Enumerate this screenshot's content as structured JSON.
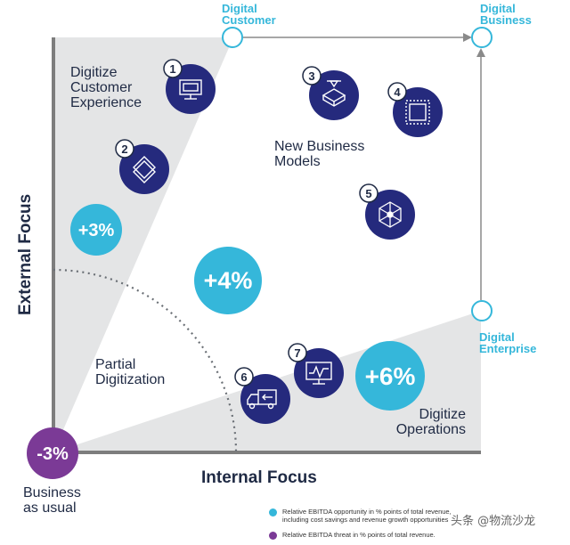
{
  "corners": {
    "digital_customer": [
      "Digital",
      "Customer"
    ],
    "digital_business": [
      "Digital",
      "Business"
    ],
    "digital_enterprise": [
      "Digital",
      "Enterprise"
    ],
    "business_as_usual": [
      "Business",
      "as usual"
    ]
  },
  "regions": {
    "digitize_customer_experience": [
      "Digitize",
      "Customer",
      "Experience"
    ],
    "new_business_models": [
      "New Business",
      "Models"
    ],
    "partial_digitization": [
      "Partial",
      "Digitization"
    ],
    "digitize_operations": [
      "Digitize",
      "Operations"
    ]
  },
  "axes": {
    "x_label": "Internal Focus",
    "y_label": "External Focus"
  },
  "percent_bubbles": [
    {
      "label": "+3%",
      "color": "#35b7da"
    },
    {
      "label": "+4%",
      "color": "#35b7da"
    },
    {
      "label": "+6%",
      "color": "#35b7da"
    },
    {
      "label": "-3%",
      "color": "#7b3a96"
    }
  ],
  "steps": [
    {
      "number": "1",
      "icon": "card-terminal-icon"
    },
    {
      "number": "2",
      "icon": "stacked-layers-icon"
    },
    {
      "number": "3",
      "icon": "3d-printer-icon"
    },
    {
      "number": "4",
      "icon": "frame-square-icon"
    },
    {
      "number": "5",
      "icon": "network-hex-icon"
    },
    {
      "number": "6",
      "icon": "delivery-truck-icon"
    },
    {
      "number": "7",
      "icon": "monitor-chart-icon"
    }
  ],
  "legend": [
    {
      "color": "#35b7da",
      "lines": [
        "Relative EBITDA opportunity in % points of total revenue,",
        "including cost savings and revenue growth opportunities"
      ]
    },
    {
      "color": "#7b3a96",
      "lines": [
        "Relative EBITDA threat in % points of total revenue."
      ]
    }
  ],
  "watermark": "头条 @物流沙龙",
  "colors": {
    "navy": "#252a7d",
    "cyan": "#35b7da",
    "purple": "#7b3a96",
    "shade": "#e4e5e6",
    "axis": "#7d7d7d"
  }
}
